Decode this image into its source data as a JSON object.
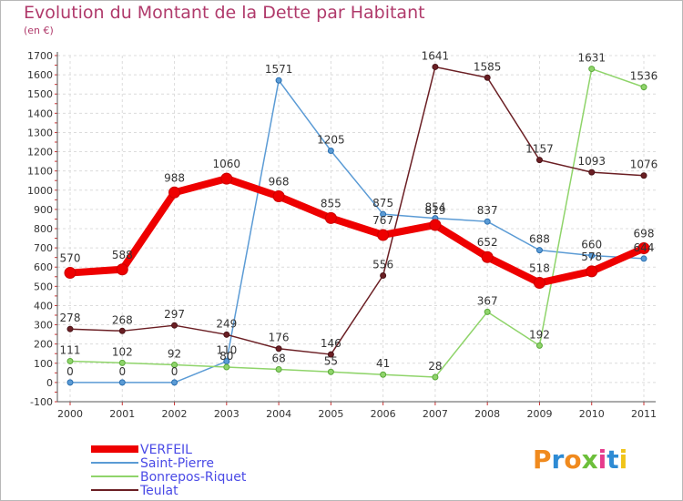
{
  "chart_data": {
    "type": "line",
    "title": "Evolution du Montant de la Dette par Habitant",
    "subtitle": "(en €)",
    "xlabel": "",
    "ylabel": "",
    "ylim": [
      -100,
      1700
    ],
    "yticks": [
      -100,
      0,
      100,
      200,
      300,
      400,
      500,
      600,
      700,
      800,
      900,
      1000,
      1100,
      1200,
      1300,
      1400,
      1500,
      1600,
      1700
    ],
    "categories": [
      "2000",
      "2001",
      "2002",
      "2003",
      "2004",
      "2005",
      "2006",
      "2007",
      "2008",
      "2009",
      "2010",
      "2011"
    ],
    "grid": true,
    "legend_position": "bottom-left",
    "series": [
      {
        "name": "VERFEIL",
        "color": "#ee0000",
        "values": [
          570,
          588,
          988,
          1060,
          968,
          855,
          767,
          819,
          652,
          518,
          578,
          698
        ]
      },
      {
        "name": "Saint-Pierre",
        "color": "#5b9bd5",
        "values": [
          0,
          0,
          0,
          110,
          1571,
          1205,
          875,
          854,
          837,
          688,
          660,
          644
        ]
      },
      {
        "name": "Bonrepos-Riquet",
        "color": "#8fd46a",
        "values": [
          111,
          102,
          92,
          80,
          68,
          55,
          41,
          28,
          367,
          192,
          1631,
          1536
        ]
      },
      {
        "name": "Teulat",
        "color": "#6b1f24",
        "values": [
          278,
          268,
          297,
          249,
          176,
          146,
          556,
          1641,
          1585,
          1157,
          1093,
          1076
        ]
      }
    ],
    "data_labels": {
      "VERFEIL": [
        "570",
        "588",
        "988",
        "1060",
        "968",
        "855",
        "767",
        "819",
        "652",
        "518",
        "578",
        "698"
      ],
      "Saint-Pierre": [
        "0",
        "0",
        "0",
        "110",
        "1571",
        "1205",
        "875",
        "854",
        "837",
        "688",
        "660",
        "644"
      ],
      "Bonrepos-Riquet": [
        "111",
        "102",
        "92",
        "80",
        "68",
        "55",
        "41",
        "28",
        "367",
        "192",
        "1631",
        "1536"
      ],
      "Teulat": [
        "278",
        "268",
        "297",
        "249",
        "176",
        "146",
        "556",
        "1641",
        "1585",
        "1157",
        "1093",
        "1076"
      ]
    }
  },
  "logo": {
    "text": "Proxiti",
    "colors": [
      "#f08a1e",
      "#2e8bd4",
      "#f08a1e",
      "#6cbf3a",
      "#e63b8c",
      "#2e8bd4",
      "#f0c419"
    ]
  }
}
